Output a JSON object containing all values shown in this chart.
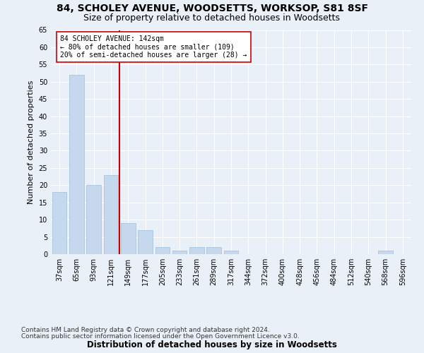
{
  "title1": "84, SCHOLEY AVENUE, WOODSETTS, WORKSOP, S81 8SF",
  "title2": "Size of property relative to detached houses in Woodsetts",
  "xlabel": "Distribution of detached houses by size in Woodsetts",
  "ylabel": "Number of detached properties",
  "footnote1": "Contains HM Land Registry data © Crown copyright and database right 2024.",
  "footnote2": "Contains public sector information licensed under the Open Government Licence v3.0.",
  "bar_labels": [
    "37sqm",
    "65sqm",
    "93sqm",
    "121sqm",
    "149sqm",
    "177sqm",
    "205sqm",
    "233sqm",
    "261sqm",
    "289sqm",
    "317sqm",
    "344sqm",
    "372sqm",
    "400sqm",
    "428sqm",
    "456sqm",
    "484sqm",
    "512sqm",
    "540sqm",
    "568sqm",
    "596sqm"
  ],
  "bar_values": [
    18,
    52,
    20,
    23,
    9,
    7,
    2,
    1,
    2,
    2,
    1,
    0,
    0,
    0,
    0,
    0,
    0,
    0,
    0,
    1,
    0
  ],
  "bar_color": "#c5d8ed",
  "bar_edge_color": "#a8c4dc",
  "vline_color": "#cc0000",
  "annotation_text": "84 SCHOLEY AVENUE: 142sqm\n← 80% of detached houses are smaller (109)\n20% of semi-detached houses are larger (28) →",
  "annotation_box_color": "#ffffff",
  "annotation_box_edge": "#cc0000",
  "ylim": [
    0,
    65
  ],
  "yticks": [
    0,
    5,
    10,
    15,
    20,
    25,
    30,
    35,
    40,
    45,
    50,
    55,
    60,
    65
  ],
  "bg_color": "#eaf0f8",
  "title1_fontsize": 10,
  "title2_fontsize": 9,
  "xlabel_fontsize": 8.5,
  "ylabel_fontsize": 8,
  "tick_fontsize": 7,
  "footnote_fontsize": 6.5
}
